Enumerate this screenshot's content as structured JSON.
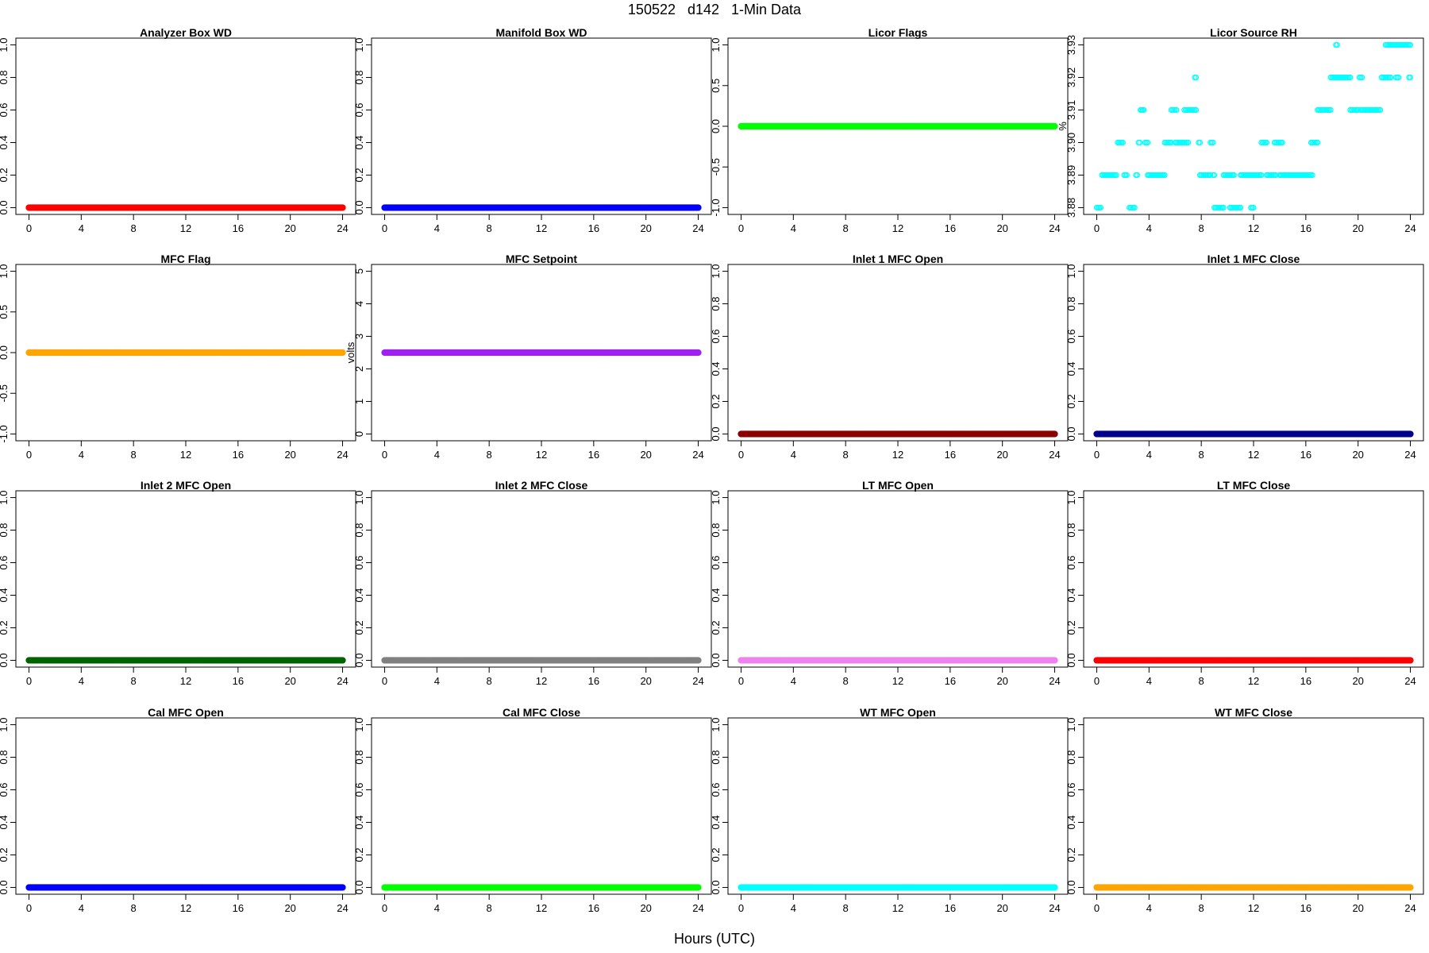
{
  "figure": {
    "title": "150522   d142   1-Min Data",
    "xlabel": "Hours (UTC)"
  },
  "chart_data": [
    {
      "type": "scatter",
      "title": "Analyzer Box WD",
      "ylabel": "",
      "color": "#FF0000",
      "xlim": [
        0,
        24
      ],
      "xticks": [
        0,
        4,
        8,
        12,
        16,
        20,
        24
      ],
      "ylim": [
        0,
        1
      ],
      "yticks": [
        "0.0",
        "0.2",
        "0.4",
        "0.6",
        "0.8",
        "1.0"
      ],
      "constant": 0.0
    },
    {
      "type": "scatter",
      "title": "Manifold Box WD",
      "ylabel": "",
      "color": "#0000FF",
      "xlim": [
        0,
        24
      ],
      "xticks": [
        0,
        4,
        8,
        12,
        16,
        20,
        24
      ],
      "ylim": [
        0,
        1
      ],
      "yticks": [
        "0.0",
        "0.2",
        "0.4",
        "0.6",
        "0.8",
        "1.0"
      ],
      "constant": 0.0
    },
    {
      "type": "scatter",
      "title": "Licor Flags",
      "ylabel": "",
      "color": "#00FF00",
      "xlim": [
        0,
        24
      ],
      "xticks": [
        0,
        4,
        8,
        12,
        16,
        20,
        24
      ],
      "ylim": [
        -1,
        1
      ],
      "yticks": [
        "-1.0",
        "-0.5",
        "0.0",
        "0.5",
        "1.0"
      ],
      "constant": 0.0
    },
    {
      "type": "scatter",
      "title": "Licor Source RH",
      "ylabel": "%",
      "color": "#00FFFF",
      "xlim": [
        0,
        24
      ],
      "xticks": [
        0,
        4,
        8,
        12,
        16,
        20,
        24
      ],
      "ylim": [
        3.88,
        3.93
      ],
      "yticks": [
        "3.88",
        "3.89",
        "3.90",
        "3.91",
        "3.92",
        "3.93"
      ],
      "segments": [
        [
          0.0,
          0.3,
          3.88
        ],
        [
          0.4,
          1.5,
          3.89
        ],
        [
          1.6,
          2.0,
          3.9
        ],
        [
          2.1,
          2.3,
          3.89
        ],
        [
          2.5,
          2.9,
          3.88
        ],
        [
          3.0,
          3.1,
          3.89
        ],
        [
          3.2,
          3.3,
          3.9
        ],
        [
          3.35,
          3.6,
          3.91
        ],
        [
          3.7,
          3.9,
          3.9
        ],
        [
          3.9,
          5.2,
          3.89
        ],
        [
          5.2,
          5.7,
          3.9
        ],
        [
          5.7,
          6.1,
          3.91
        ],
        [
          6.0,
          7.0,
          3.9
        ],
        [
          6.7,
          7.6,
          3.91
        ],
        [
          7.5,
          7.6,
          3.92
        ],
        [
          7.8,
          7.9,
          3.9
        ],
        [
          7.9,
          8.7,
          3.89
        ],
        [
          8.7,
          8.9,
          3.9
        ],
        [
          8.9,
          9.0,
          3.89
        ],
        [
          9.0,
          9.7,
          3.88
        ],
        [
          9.7,
          10.5,
          3.89
        ],
        [
          10.2,
          11.0,
          3.88
        ],
        [
          11.0,
          11.9,
          3.89
        ],
        [
          11.8,
          12.0,
          3.88
        ],
        [
          12.0,
          12.6,
          3.89
        ],
        [
          12.6,
          13.0,
          3.9
        ],
        [
          13.0,
          13.7,
          3.89
        ],
        [
          13.6,
          14.2,
          3.9
        ],
        [
          14.0,
          16.5,
          3.89
        ],
        [
          16.4,
          16.9,
          3.9
        ],
        [
          16.9,
          17.9,
          3.91
        ],
        [
          17.9,
          19.4,
          3.92
        ],
        [
          18.3,
          18.4,
          3.93
        ],
        [
          19.4,
          20.0,
          3.91
        ],
        [
          20.1,
          20.3,
          3.92
        ],
        [
          20.2,
          21.7,
          3.91
        ],
        [
          21.8,
          22.5,
          3.92
        ],
        [
          22.1,
          24.0,
          3.93
        ],
        [
          22.9,
          23.1,
          3.92
        ],
        [
          23.9,
          24.0,
          3.92
        ]
      ]
    },
    {
      "type": "scatter",
      "title": "MFC Flag",
      "ylabel": "",
      "color": "#FFA500",
      "xlim": [
        0,
        24
      ],
      "xticks": [
        0,
        4,
        8,
        12,
        16,
        20,
        24
      ],
      "ylim": [
        -1,
        1
      ],
      "yticks": [
        "-1.0",
        "-0.5",
        "0.0",
        "0.5",
        "1.0"
      ],
      "constant": 0.0
    },
    {
      "type": "scatter",
      "title": "MFC Setpoint",
      "ylabel": "volts",
      "color": "#A020F0",
      "xlim": [
        0,
        24
      ],
      "xticks": [
        0,
        4,
        8,
        12,
        16,
        20,
        24
      ],
      "ylim": [
        0,
        5
      ],
      "yticks": [
        "0",
        "1",
        "2",
        "3",
        "4",
        "5"
      ],
      "constant": 2.5
    },
    {
      "type": "scatter",
      "title": "Inlet 1 MFC Open",
      "ylabel": "",
      "color": "#8B0000",
      "xlim": [
        0,
        24
      ],
      "xticks": [
        0,
        4,
        8,
        12,
        16,
        20,
        24
      ],
      "ylim": [
        0,
        1
      ],
      "yticks": [
        "0.0",
        "0.2",
        "0.4",
        "0.6",
        "0.8",
        "1.0"
      ],
      "constant": 0.0
    },
    {
      "type": "scatter",
      "title": "Inlet 1 MFC Close",
      "ylabel": "",
      "color": "#00008B",
      "xlim": [
        0,
        24
      ],
      "xticks": [
        0,
        4,
        8,
        12,
        16,
        20,
        24
      ],
      "ylim": [
        0,
        1
      ],
      "yticks": [
        "0.0",
        "0.2",
        "0.4",
        "0.6",
        "0.8",
        "1.0"
      ],
      "constant": 0.0
    },
    {
      "type": "scatter",
      "title": "Inlet 2 MFC Open",
      "ylabel": "",
      "color": "#006400",
      "xlim": [
        0,
        24
      ],
      "xticks": [
        0,
        4,
        8,
        12,
        16,
        20,
        24
      ],
      "ylim": [
        0,
        1
      ],
      "yticks": [
        "0.0",
        "0.2",
        "0.4",
        "0.6",
        "0.8",
        "1.0"
      ],
      "constant": 0.0
    },
    {
      "type": "scatter",
      "title": "Inlet 2 MFC Close",
      "ylabel": "",
      "color": "#808080",
      "xlim": [
        0,
        24
      ],
      "xticks": [
        0,
        4,
        8,
        12,
        16,
        20,
        24
      ],
      "ylim": [
        0,
        1
      ],
      "yticks": [
        "0.0",
        "0.2",
        "0.4",
        "0.6",
        "0.8",
        "1.0"
      ],
      "constant": 0.0
    },
    {
      "type": "scatter",
      "title": "LT MFC Open",
      "ylabel": "",
      "color": "#EE82EE",
      "xlim": [
        0,
        24
      ],
      "xticks": [
        0,
        4,
        8,
        12,
        16,
        20,
        24
      ],
      "ylim": [
        0,
        1
      ],
      "yticks": [
        "0.0",
        "0.2",
        "0.4",
        "0.6",
        "0.8",
        "1.0"
      ],
      "constant": 0.0
    },
    {
      "type": "scatter",
      "title": "LT MFC Close",
      "ylabel": "",
      "color": "#FF0000",
      "xlim": [
        0,
        24
      ],
      "xticks": [
        0,
        4,
        8,
        12,
        16,
        20,
        24
      ],
      "ylim": [
        0,
        1
      ],
      "yticks": [
        "0.0",
        "0.2",
        "0.4",
        "0.6",
        "0.8",
        "1.0"
      ],
      "constant": 0.0
    },
    {
      "type": "scatter",
      "title": "Cal MFC Open",
      "ylabel": "",
      "color": "#0000FF",
      "xlim": [
        0,
        24
      ],
      "xticks": [
        0,
        4,
        8,
        12,
        16,
        20,
        24
      ],
      "ylim": [
        0,
        1
      ],
      "yticks": [
        "0.0",
        "0.2",
        "0.4",
        "0.6",
        "0.8",
        "1.0"
      ],
      "constant": 0.0
    },
    {
      "type": "scatter",
      "title": "Cal MFC Close",
      "ylabel": "",
      "color": "#00FF00",
      "xlim": [
        0,
        24
      ],
      "xticks": [
        0,
        4,
        8,
        12,
        16,
        20,
        24
      ],
      "ylim": [
        0,
        1
      ],
      "yticks": [
        "0.0",
        "0.2",
        "0.4",
        "0.6",
        "0.8",
        "1.0"
      ],
      "constant": 0.0
    },
    {
      "type": "scatter",
      "title": "WT MFC Open",
      "ylabel": "",
      "color": "#00FFFF",
      "xlim": [
        0,
        24
      ],
      "xticks": [
        0,
        4,
        8,
        12,
        16,
        20,
        24
      ],
      "ylim": [
        0,
        1
      ],
      "yticks": [
        "0.0",
        "0.2",
        "0.4",
        "0.6",
        "0.8",
        "1.0"
      ],
      "constant": 0.0
    },
    {
      "type": "scatter",
      "title": "WT MFC Close",
      "ylabel": "",
      "color": "#FFA500",
      "xlim": [
        0,
        24
      ],
      "xticks": [
        0,
        4,
        8,
        12,
        16,
        20,
        24
      ],
      "ylim": [
        0,
        1
      ],
      "yticks": [
        "0.0",
        "0.2",
        "0.4",
        "0.6",
        "0.8",
        "1.0"
      ],
      "constant": 0.0
    }
  ]
}
